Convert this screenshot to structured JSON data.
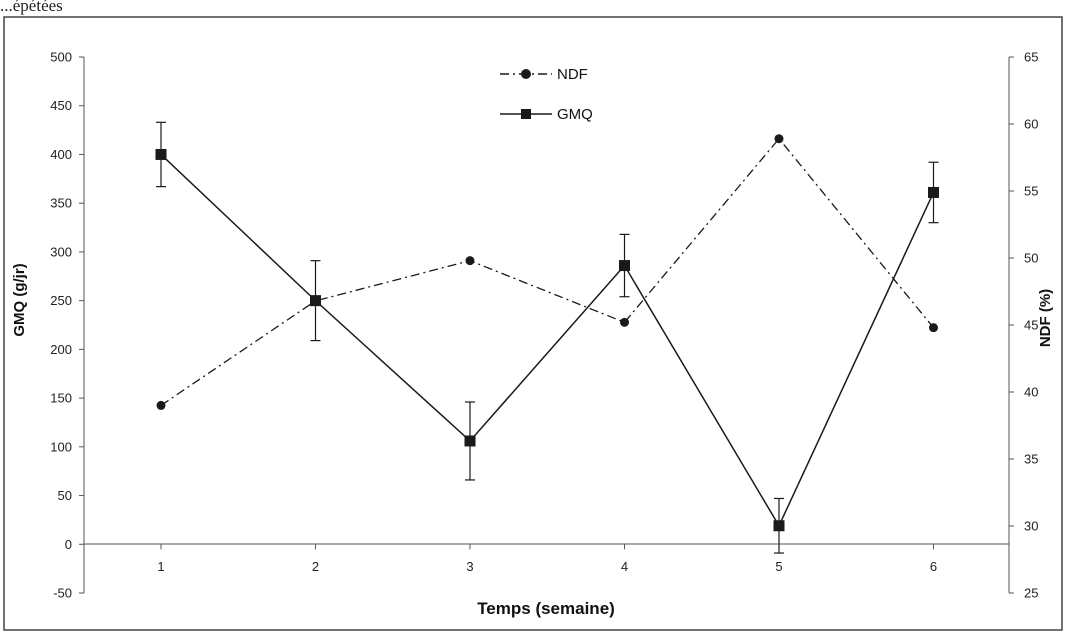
{
  "header_fragment": "...épétées",
  "chart_data": {
    "type": "line",
    "x": [
      1,
      2,
      3,
      4,
      5,
      6
    ],
    "xlabel": "Temps (semaine)",
    "ylabel": "GMQ (g/jr)",
    "y2label": "NDF (%)",
    "ylim": [
      -50,
      500
    ],
    "y2lim": [
      25,
      65
    ],
    "xticks": [
      "1",
      "2",
      "3",
      "4",
      "5",
      "6"
    ],
    "yticks": [
      "-50",
      "0",
      "50",
      "100",
      "150",
      "200",
      "250",
      "300",
      "350",
      "400",
      "450",
      "500"
    ],
    "y2ticks": [
      "25",
      "30",
      "35",
      "40",
      "45",
      "50",
      "55",
      "60",
      "65"
    ],
    "grid": false,
    "legend_position": "top-center",
    "series": [
      {
        "name": "NDF",
        "axis": "right",
        "marker": "circle",
        "line_style": "dash-dot",
        "values": [
          39.0,
          46.8,
          49.8,
          45.2,
          58.9,
          44.8
        ]
      },
      {
        "name": "GMQ",
        "axis": "left",
        "marker": "square",
        "line_style": "solid",
        "values": [
          400,
          250,
          106,
          286,
          19,
          361
        ],
        "error": [
          33,
          41,
          40,
          32,
          28,
          31
        ]
      }
    ],
    "colors": {
      "line": "#1a1a1a",
      "axis": "#555555"
    }
  }
}
